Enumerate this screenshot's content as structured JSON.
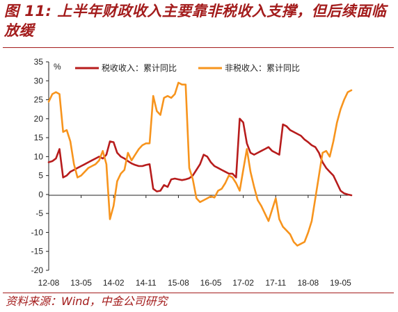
{
  "header": {
    "title": "图 11: 上半年财政收入主要靠非税收入支撑，但后续面临放缓"
  },
  "footer": {
    "source": "资料来源：Wind，中金公司研究"
  },
  "chart_data": {
    "type": "line",
    "ylabel": "%",
    "ylim": [
      -20,
      35
    ],
    "yticks": [
      35,
      30,
      25,
      20,
      15,
      10,
      5,
      0,
      -5,
      -10,
      -15,
      -20
    ],
    "xticks": [
      "12-08",
      "13-05",
      "14-02",
      "14-11",
      "15-08",
      "16-05",
      "17-02",
      "17-11",
      "18-08",
      "19-05"
    ],
    "xlim_months": [
      "2012-08",
      "2019-08"
    ],
    "grid": false,
    "legend_position": "top",
    "series": [
      {
        "name": "税收收入：累计同比",
        "color": "#b71c1c",
        "points": [
          [
            "2012-08",
            8.5
          ],
          [
            "2012-09",
            8.8
          ],
          [
            "2012-10",
            9.5
          ],
          [
            "2012-11",
            12.0
          ],
          [
            "2012-12",
            4.5
          ],
          [
            "2013-01",
            5.0
          ],
          [
            "2013-02",
            6.0
          ],
          [
            "2013-03",
            6.5
          ],
          [
            "2013-04",
            7.0
          ],
          [
            "2013-05",
            7.5
          ],
          [
            "2013-06",
            8.0
          ],
          [
            "2013-07",
            8.5
          ],
          [
            "2013-08",
            9.0
          ],
          [
            "2013-09",
            9.5
          ],
          [
            "2013-10",
            10.0
          ],
          [
            "2013-11",
            9.5
          ],
          [
            "2013-12",
            10.5
          ],
          [
            "2014-01",
            14.0
          ],
          [
            "2014-02",
            13.8
          ],
          [
            "2014-03",
            11.0
          ],
          [
            "2014-04",
            10.0
          ],
          [
            "2014-05",
            9.5
          ],
          [
            "2014-06",
            8.8
          ],
          [
            "2014-07",
            8.2
          ],
          [
            "2014-08",
            7.8
          ],
          [
            "2014-09",
            7.5
          ],
          [
            "2014-10",
            7.5
          ],
          [
            "2014-11",
            7.8
          ],
          [
            "2014-12",
            8.0
          ],
          [
            "2015-01",
            1.5
          ],
          [
            "2015-02",
            0.8
          ],
          [
            "2015-03",
            1.0
          ],
          [
            "2015-04",
            2.5
          ],
          [
            "2015-05",
            2.0
          ],
          [
            "2015-06",
            4.0
          ],
          [
            "2015-07",
            4.2
          ],
          [
            "2015-08",
            4.0
          ],
          [
            "2015-09",
            3.8
          ],
          [
            "2015-10",
            4.0
          ],
          [
            "2015-11",
            4.3
          ],
          [
            "2015-12",
            5.0
          ],
          [
            "2016-01",
            6.5
          ],
          [
            "2016-02",
            8.0
          ],
          [
            "2016-03",
            10.5
          ],
          [
            "2016-04",
            10.0
          ],
          [
            "2016-05",
            8.5
          ],
          [
            "2016-06",
            7.5
          ],
          [
            "2016-07",
            7.0
          ],
          [
            "2016-08",
            6.5
          ],
          [
            "2016-09",
            6.0
          ],
          [
            "2016-10",
            5.5
          ],
          [
            "2016-11",
            5.5
          ],
          [
            "2016-12",
            4.5
          ],
          [
            "2017-01",
            20.0
          ],
          [
            "2017-02",
            19.0
          ],
          [
            "2017-03",
            13.5
          ],
          [
            "2017-04",
            11.0
          ],
          [
            "2017-05",
            10.5
          ],
          [
            "2017-06",
            11.0
          ],
          [
            "2017-07",
            11.5
          ],
          [
            "2017-08",
            12.0
          ],
          [
            "2017-09",
            12.5
          ],
          [
            "2017-10",
            11.5
          ],
          [
            "2017-11",
            11.0
          ],
          [
            "2017-12",
            10.5
          ],
          [
            "2018-01",
            18.5
          ],
          [
            "2018-02",
            18.0
          ],
          [
            "2018-03",
            17.0
          ],
          [
            "2018-04",
            16.5
          ],
          [
            "2018-05",
            16.0
          ],
          [
            "2018-06",
            15.5
          ],
          [
            "2018-07",
            14.5
          ],
          [
            "2018-08",
            13.8
          ],
          [
            "2018-09",
            13.0
          ],
          [
            "2018-10",
            12.5
          ],
          [
            "2018-11",
            11.0
          ],
          [
            "2018-12",
            8.5
          ],
          [
            "2019-01",
            7.0
          ],
          [
            "2019-02",
            6.0
          ],
          [
            "2019-03",
            5.0
          ],
          [
            "2019-04",
            3.0
          ],
          [
            "2019-05",
            1.0
          ],
          [
            "2019-06",
            0.3
          ],
          [
            "2019-07",
            0.0
          ],
          [
            "2019-08",
            -0.2
          ]
        ]
      },
      {
        "name": "非税收入：累计同比",
        "color": "#f7941d",
        "points": [
          [
            "2012-08",
            24.5
          ],
          [
            "2012-09",
            26.5
          ],
          [
            "2012-10",
            27.0
          ],
          [
            "2012-11",
            26.5
          ],
          [
            "2012-12",
            16.5
          ],
          [
            "2013-01",
            17.0
          ],
          [
            "2013-02",
            14.0
          ],
          [
            "2013-03",
            8.0
          ],
          [
            "2013-04",
            4.5
          ],
          [
            "2013-05",
            5.0
          ],
          [
            "2013-06",
            6.0
          ],
          [
            "2013-07",
            7.0
          ],
          [
            "2013-08",
            7.5
          ],
          [
            "2013-09",
            8.0
          ],
          [
            "2013-10",
            9.0
          ],
          [
            "2013-11",
            11.5
          ],
          [
            "2013-12",
            8.0
          ],
          [
            "2014-01",
            -6.5
          ],
          [
            "2014-02",
            -3.0
          ],
          [
            "2014-03",
            3.5
          ],
          [
            "2014-04",
            5.5
          ],
          [
            "2014-05",
            6.5
          ],
          [
            "2014-06",
            11.0
          ],
          [
            "2014-07",
            9.0
          ],
          [
            "2014-08",
            10.5
          ],
          [
            "2014-09",
            12.0
          ],
          [
            "2014-10",
            13.0
          ],
          [
            "2014-11",
            13.5
          ],
          [
            "2014-12",
            13.5
          ],
          [
            "2015-01",
            26.0
          ],
          [
            "2015-02",
            22.0
          ],
          [
            "2015-03",
            21.0
          ],
          [
            "2015-04",
            25.5
          ],
          [
            "2015-05",
            26.0
          ],
          [
            "2015-06",
            25.5
          ],
          [
            "2015-07",
            26.5
          ],
          [
            "2015-08",
            29.5
          ],
          [
            "2015-09",
            29.0
          ],
          [
            "2015-10",
            29.0
          ],
          [
            "2015-11",
            7.0
          ],
          [
            "2015-12",
            4.0
          ],
          [
            "2016-01",
            -1.0
          ],
          [
            "2016-02",
            -2.0
          ],
          [
            "2016-03",
            -1.5
          ],
          [
            "2016-04",
            -1.0
          ],
          [
            "2016-05",
            -0.5
          ],
          [
            "2016-06",
            -0.8
          ],
          [
            "2016-07",
            1.0
          ],
          [
            "2016-08",
            1.5
          ],
          [
            "2016-09",
            3.0
          ],
          [
            "2016-10",
            5.0
          ],
          [
            "2016-11",
            4.5
          ],
          [
            "2016-12",
            3.0
          ],
          [
            "2017-01",
            1.0
          ],
          [
            "2017-02",
            6.5
          ],
          [
            "2017-03",
            12.0
          ],
          [
            "2017-04",
            6.0
          ],
          [
            "2017-05",
            2.0
          ],
          [
            "2017-06",
            -1.5
          ],
          [
            "2017-07",
            -3.0
          ],
          [
            "2017-08",
            -5.0
          ],
          [
            "2017-09",
            -7.0
          ],
          [
            "2017-10",
            -4.0
          ],
          [
            "2017-11",
            -1.0
          ],
          [
            "2017-12",
            -6.5
          ],
          [
            "2018-01",
            -8.5
          ],
          [
            "2018-02",
            -9.5
          ],
          [
            "2018-03",
            -10.5
          ],
          [
            "2018-04",
            -12.5
          ],
          [
            "2018-05",
            -13.5
          ],
          [
            "2018-06",
            -13.0
          ],
          [
            "2018-07",
            -12.5
          ],
          [
            "2018-08",
            -10.0
          ],
          [
            "2018-09",
            -7.0
          ],
          [
            "2018-10",
            -1.0
          ],
          [
            "2018-11",
            5.0
          ],
          [
            "2018-12",
            11.0
          ],
          [
            "2019-01",
            11.5
          ],
          [
            "2019-02",
            10.0
          ],
          [
            "2019-03",
            14.0
          ],
          [
            "2019-04",
            19.0
          ],
          [
            "2019-05",
            22.5
          ],
          [
            "2019-06",
            25.0
          ],
          [
            "2019-07",
            27.0
          ],
          [
            "2019-08",
            27.5
          ]
        ]
      }
    ]
  }
}
